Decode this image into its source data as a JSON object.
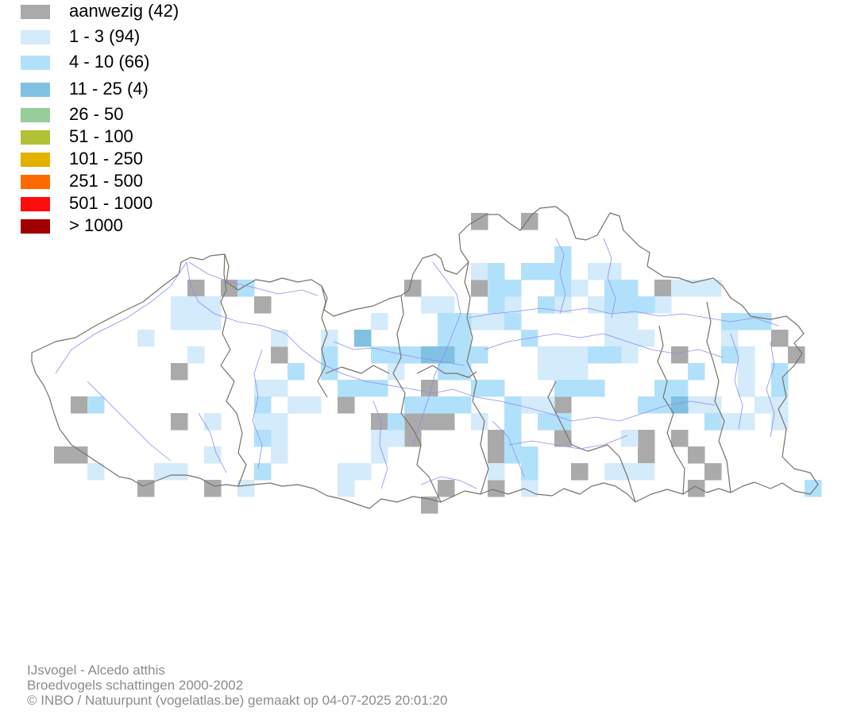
{
  "legend": {
    "items": [
      {
        "label": "aanwezig (42)",
        "color": "#aaaaaa"
      },
      {
        "label": "1 - 3 (94)",
        "color": "#d3ebfa"
      },
      {
        "label": "4 - 10 (66)",
        "color": "#b1e1fa"
      },
      {
        "label": "11 - 25 (4)",
        "color": "#80c1e1"
      },
      {
        "label": "26 - 50",
        "color": "#98cc98"
      },
      {
        "label": "51 - 100",
        "color": "#b2c136"
      },
      {
        "label": "101 - 250",
        "color": "#e3b100"
      },
      {
        "label": "251 - 500",
        "color": "#ff6a00"
      },
      {
        "label": "501 - 1000",
        "color": "#ff0c0c"
      },
      {
        "label": "> 1000",
        "color": "#a00000"
      }
    ]
  },
  "map": {
    "border_color": "#7a7068",
    "river_color": "#8c8cf0",
    "grid_columns": 49,
    "grid_rows": 18
  },
  "footer": {
    "species": "IJsvogel - Alcedo atthis",
    "dataset": "Broedvogels schattingen 2000-2002",
    "credit": "© INBO / Natuurpunt (vogelatlas.be) gemaakt op 04-07-2025 20:01:20"
  }
}
